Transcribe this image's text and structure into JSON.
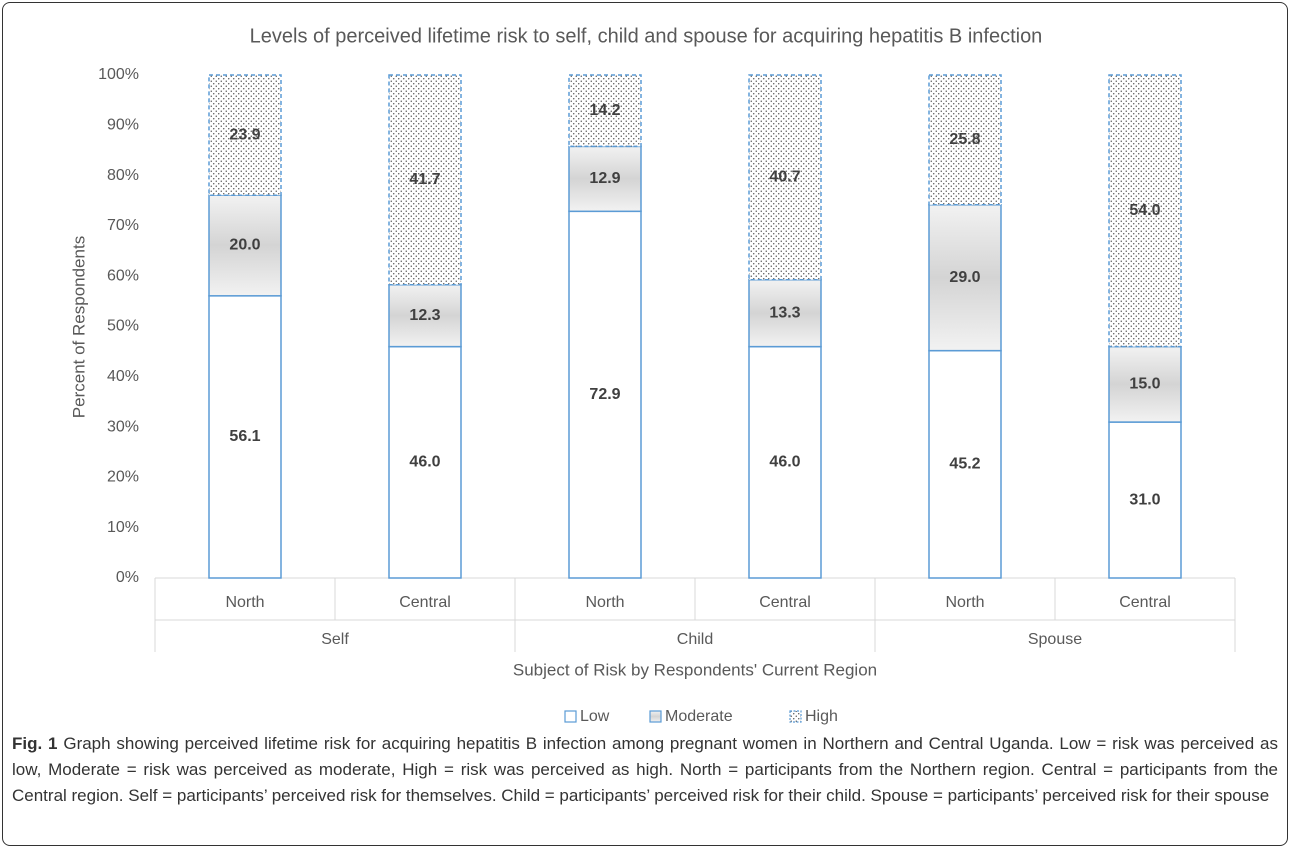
{
  "chart_data": {
    "type": "stacked-bar",
    "title": "Levels of perceived lifetime risk to self, child and spouse for acquiring hepatitis B infection",
    "xlabel": "Subject of Risk by Respondents' Current Region",
    "ylabel": "Percent of Respondents",
    "categories": [
      "North",
      "Central",
      "North",
      "Central",
      "North",
      "Central"
    ],
    "groups": [
      "Self",
      "Child",
      "Spouse"
    ],
    "series": [
      {
        "name": "Low",
        "color": "#5b9bd5",
        "values": [
          56.1,
          46.0,
          72.9,
          46.0,
          45.2,
          31.0
        ],
        "value_labels": [
          "56.1",
          "46.0",
          "72.9",
          "46.0",
          "45.2",
          "31.0"
        ]
      },
      {
        "name": "Moderate",
        "color": "#5b9bd5",
        "values": [
          20.0,
          12.3,
          12.9,
          13.3,
          29.0,
          15.0
        ],
        "value_labels": [
          "20.0",
          "12.3",
          "12.9",
          "13.3",
          "29.0",
          "15.0"
        ]
      },
      {
        "name": "High",
        "color": "#5b9bd5",
        "values": [
          23.9,
          41.7,
          14.2,
          40.7,
          25.8,
          54.0
        ],
        "value_labels": [
          "23.9",
          "41.7",
          "14.2",
          "40.7",
          "25.8",
          "54.0"
        ]
      }
    ],
    "ylim": [
      0,
      100
    ],
    "yticks": [
      {
        "value": 0,
        "label": "0%"
      },
      {
        "value": 10,
        "label": "10%"
      },
      {
        "value": 20,
        "label": "20%"
      },
      {
        "value": 30,
        "label": "30%"
      },
      {
        "value": 40,
        "label": "40%"
      },
      {
        "value": 50,
        "label": "50%"
      },
      {
        "value": 60,
        "label": "60%"
      },
      {
        "value": 70,
        "label": "70%"
      },
      {
        "value": 80,
        "label": "80%"
      },
      {
        "value": 90,
        "label": "90%"
      },
      {
        "value": 100,
        "label": "100%"
      }
    ],
    "grid": false,
    "legend": "bottom"
  },
  "caption": {
    "label": "Fig. 1",
    "text": "Graph showing perceived lifetime risk for acquiring hepatitis B infection among pregnant women in Northern and Central Uganda. Low = risk was perceived as low, Moderate = risk was perceived as moderate, High = risk was perceived as high. North = participants from the Northern region. Central = participants from the Central region. Self = participants’ perceived risk for themselves. Child = participants’ perceived risk for their child. Spouse = participants’ perceived risk for their spouse"
  }
}
